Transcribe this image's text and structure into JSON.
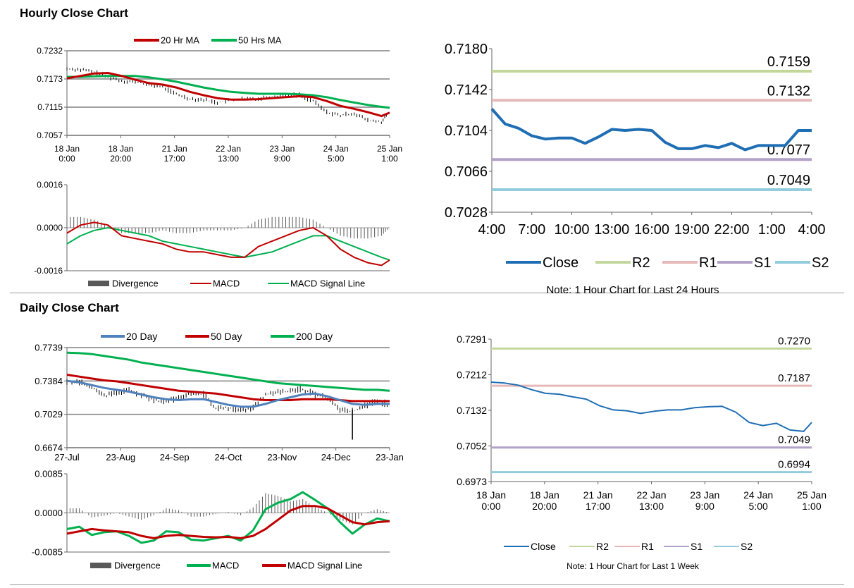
{
  "section_titles": {
    "hourly": "Hourly Close Chart",
    "daily": "Daily Close Chart"
  },
  "colors": {
    "ma20_hr": "#c00000",
    "ma50_hr": "#00b050",
    "close": "#1f6eb4",
    "r2": "#c3d69b",
    "r1": "#e6b9b8",
    "s1": "#b3a2c7",
    "s2": "#93cddd",
    "day20": "#4f81bd",
    "day50": "#c00000",
    "day200": "#00b050",
    "divergence": "#595959"
  },
  "chart_data": [
    {
      "id": "hourly_price",
      "type": "line",
      "legend": [
        "20 Hr MA",
        "50 Hrs MA"
      ],
      "ylim": [
        0.7057,
        0.7232
      ],
      "yticks": [
        "0.7232",
        "0.7173",
        "0.7115",
        "0.7057"
      ],
      "xticks": [
        "18 Jan\n0:00",
        "18 Jan\n20:00",
        "21 Jan\n17:00",
        "22 Jan\n13:00",
        "23 Jan\n9:00",
        "24 Jan\n5:00",
        "25 Jan\n1:00"
      ],
      "x": [
        0,
        5,
        10,
        15,
        20,
        25,
        30,
        35,
        40,
        45,
        50,
        55,
        60,
        65,
        70,
        75,
        80,
        85,
        90,
        95,
        100,
        105,
        110,
        115,
        118
      ],
      "close": [
        0.7195,
        0.7193,
        0.7188,
        0.7178,
        0.717,
        0.7168,
        0.7162,
        0.7157,
        0.7142,
        0.7133,
        0.7131,
        0.7125,
        0.713,
        0.7133,
        0.7133,
        0.7138,
        0.714,
        0.7141,
        0.7128,
        0.7105,
        0.7098,
        0.7103,
        0.7088,
        0.7085,
        0.7105
      ],
      "series": [
        {
          "name": "20 Hr MA",
          "values": [
            0.7175,
            0.718,
            0.7185,
            0.7186,
            0.718,
            0.7172,
            0.7165,
            0.7162,
            0.7156,
            0.7147,
            0.714,
            0.7134,
            0.7131,
            0.7131,
            0.7132,
            0.7134,
            0.7136,
            0.7138,
            0.7136,
            0.7128,
            0.7118,
            0.7112,
            0.7105,
            0.7097,
            0.7104
          ]
        },
        {
          "name": "50 Hrs MA",
          "values": [
            0.7178,
            0.7178,
            0.7179,
            0.718,
            0.718,
            0.718,
            0.7177,
            0.7173,
            0.7168,
            0.7162,
            0.7156,
            0.7151,
            0.7147,
            0.7145,
            0.7143,
            0.7143,
            0.7143,
            0.7142,
            0.714,
            0.7136,
            0.713,
            0.7125,
            0.712,
            0.7116,
            0.7114
          ]
        }
      ]
    },
    {
      "id": "hourly_macd",
      "type": "line",
      "legend": [
        "Divergence",
        "MACD",
        "MACD Signal Line"
      ],
      "ylim": [
        -0.0016,
        0.0016
      ],
      "yticks": [
        "0.0016",
        "0.0000",
        "-0.0016"
      ],
      "x": [
        0,
        5,
        10,
        15,
        20,
        25,
        30,
        35,
        40,
        45,
        50,
        55,
        60,
        65,
        70,
        75,
        80,
        85,
        90,
        95,
        100,
        105,
        110,
        115,
        118
      ],
      "series": [
        {
          "name": "MACD",
          "values": [
            -0.0002,
            0.0001,
            0.0002,
            0.0001,
            -0.0003,
            -0.0004,
            -0.0005,
            -0.0006,
            -0.0008,
            -0.0009,
            -0.0009,
            -0.001,
            -0.0011,
            -0.0011,
            -0.0007,
            -0.0005,
            -0.0003,
            -0.0001,
            0.0,
            -0.0003,
            -0.0008,
            -0.0011,
            -0.0013,
            -0.0014,
            -0.0012
          ]
        },
        {
          "name": "MACD Signal Line",
          "values": [
            -0.0006,
            -0.0003,
            -0.0001,
            0.0,
            -0.0001,
            -0.0002,
            -0.0003,
            -0.0005,
            -0.0006,
            -0.0007,
            -0.0008,
            -0.0009,
            -0.001,
            -0.0011,
            -0.001,
            -0.0009,
            -0.0007,
            -0.0005,
            -0.0003,
            -0.0003,
            -0.0005,
            -0.0007,
            -0.0009,
            -0.0011,
            -0.0012
          ]
        }
      ],
      "divergence": [
        0.0004,
        0.0004,
        0.0003,
        0.0001,
        -0.0002,
        -0.0002,
        -0.0002,
        -0.0001,
        -0.0002,
        -0.0002,
        -0.0001,
        -0.0001,
        -0.0001,
        0.0,
        0.0003,
        0.0004,
        0.0004,
        0.0004,
        0.0003,
        0.0,
        -0.0003,
        -0.0004,
        -0.0004,
        -0.0003,
        0.0
      ]
    },
    {
      "id": "hourly_24h",
      "type": "line",
      "ylim": [
        0.7028,
        0.718
      ],
      "yticks": [
        "0.7180",
        "0.7142",
        "0.7104",
        "0.7066",
        "0.7028"
      ],
      "xticks": [
        "4:00",
        "7:00",
        "10:00",
        "13:00",
        "16:00",
        "19:00",
        "22:00",
        "1:00",
        "4:00"
      ],
      "x": [
        0,
        1,
        2,
        3,
        4,
        5,
        6,
        7,
        8,
        9,
        10,
        11,
        12,
        13,
        14,
        15,
        16,
        17,
        18,
        19,
        20,
        21,
        22,
        23,
        24
      ],
      "close": [
        0.7124,
        0.711,
        0.7106,
        0.7099,
        0.7096,
        0.7097,
        0.7097,
        0.7092,
        0.7098,
        0.7105,
        0.7104,
        0.7105,
        0.7104,
        0.7093,
        0.7087,
        0.7087,
        0.709,
        0.7088,
        0.7092,
        0.7086,
        0.709,
        0.709,
        0.709,
        0.7104,
        0.7104
      ],
      "levels": [
        {
          "name": "R2",
          "value": 0.7159,
          "label": "0.7159"
        },
        {
          "name": "R1",
          "value": 0.7132,
          "label": "0.7132"
        },
        {
          "name": "S1",
          "value": 0.7077,
          "label": "0.7077"
        },
        {
          "name": "S2",
          "value": 0.7049,
          "label": "0.7049"
        }
      ],
      "legend": [
        "Close",
        "R2",
        "R1",
        "S1",
        "S2"
      ],
      "note": "Note: 1 Hour Chart for Last 24 Hours"
    },
    {
      "id": "daily_price",
      "type": "line",
      "legend": [
        "20 Day",
        "50 Day",
        "200 Day"
      ],
      "ylim": [
        0.6674,
        0.7739
      ],
      "yticks": [
        "0.7739",
        "0.7384",
        "0.7029",
        "0.6674"
      ],
      "xticks": [
        "27-Jul",
        "23-Aug",
        "24-Sep",
        "24-Oct",
        "23-Nov",
        "24-Dec",
        "23-Jan"
      ],
      "x": [
        0,
        5,
        10,
        15,
        20,
        25,
        30,
        35,
        40,
        45,
        50,
        55,
        60,
        65,
        70,
        75,
        80,
        85,
        90,
        95,
        100,
        105,
        110,
        115,
        120,
        125,
        130
      ],
      "close": [
        0.738,
        0.737,
        0.733,
        0.722,
        0.726,
        0.729,
        0.723,
        0.718,
        0.716,
        0.72,
        0.725,
        0.724,
        0.71,
        0.71,
        0.707,
        0.71,
        0.724,
        0.726,
        0.727,
        0.73,
        0.724,
        0.72,
        0.708,
        0.706,
        0.712,
        0.717,
        0.713
      ],
      "series": [
        {
          "name": "20 Day",
          "values": [
            0.7385,
            0.737,
            0.734,
            0.731,
            0.729,
            0.727,
            0.724,
            0.721,
            0.719,
            0.718,
            0.719,
            0.719,
            0.716,
            0.713,
            0.711,
            0.711,
            0.714,
            0.718,
            0.721,
            0.724,
            0.725,
            0.722,
            0.718,
            0.714,
            0.713,
            0.714,
            0.714
          ]
        },
        {
          "name": "50 Day",
          "values": [
            0.745,
            0.743,
            0.741,
            0.739,
            0.738,
            0.736,
            0.734,
            0.732,
            0.73,
            0.728,
            0.727,
            0.726,
            0.725,
            0.723,
            0.721,
            0.719,
            0.718,
            0.718,
            0.718,
            0.719,
            0.719,
            0.719,
            0.718,
            0.717,
            0.717,
            0.717,
            0.717
          ]
        },
        {
          "name": "200 Day",
          "values": [
            0.7685,
            0.768,
            0.767,
            0.765,
            0.763,
            0.761,
            0.758,
            0.756,
            0.754,
            0.752,
            0.75,
            0.748,
            0.746,
            0.744,
            0.742,
            0.74,
            0.738,
            0.736,
            0.735,
            0.734,
            0.733,
            0.732,
            0.731,
            0.73,
            0.729,
            0.729,
            0.728
          ]
        }
      ]
    },
    {
      "id": "daily_macd",
      "type": "line",
      "legend": [
        "Divergence",
        "MACD",
        "MACD Signal Line"
      ],
      "ylim": [
        -0.0085,
        0.0085
      ],
      "yticks": [
        "0.0085",
        "0.0000",
        "-0.0085"
      ],
      "x": [
        0,
        5,
        10,
        15,
        20,
        25,
        30,
        35,
        40,
        45,
        50,
        55,
        60,
        65,
        70,
        75,
        80,
        85,
        90,
        95,
        100,
        105,
        110,
        115,
        120,
        125,
        130
      ],
      "series": [
        {
          "name": "MACD",
          "values": [
            -0.0035,
            -0.003,
            -0.0048,
            -0.0042,
            -0.004,
            -0.005,
            -0.0065,
            -0.006,
            -0.004,
            -0.0042,
            -0.0058,
            -0.006,
            -0.0055,
            -0.005,
            -0.006,
            -0.0038,
            0.0008,
            0.0022,
            0.003,
            0.0045,
            0.0028,
            0.001,
            -0.002,
            -0.0045,
            -0.0025,
            -0.0012,
            -0.0018
          ]
        },
        {
          "name": "MACD Signal Line",
          "values": [
            -0.0045,
            -0.004,
            -0.0035,
            -0.0038,
            -0.004,
            -0.0042,
            -0.005,
            -0.0055,
            -0.005,
            -0.0048,
            -0.005,
            -0.0052,
            -0.0053,
            -0.0052,
            -0.0055,
            -0.005,
            -0.0035,
            -0.0015,
            0.0005,
            0.0015,
            0.0015,
            0.001,
            -0.0005,
            -0.002,
            -0.0025,
            -0.002,
            -0.0018
          ]
        }
      ],
      "divergence": [
        0.001,
        0.001,
        -0.001,
        -0.0006,
        0.0,
        -0.0008,
        -0.0015,
        -0.0005,
        0.001,
        0.0006,
        -0.0008,
        -0.0008,
        -0.0002,
        0.0002,
        -0.0005,
        0.0012,
        0.0043,
        0.0037,
        0.0025,
        0.003,
        0.0013,
        0.0,
        -0.0015,
        -0.0025,
        0.0,
        0.0008,
        0.0
      ]
    },
    {
      "id": "weekly_hourly",
      "type": "line",
      "ylim": [
        0.6973,
        0.7291
      ],
      "yticks": [
        "0.7291",
        "0.7212",
        "0.7132",
        "0.7052",
        "0.6973"
      ],
      "xticks": [
        "18 Jan\n0:00",
        "18 Jan\n20:00",
        "21 Jan\n17:00",
        "22 Jan\n13:00",
        "23 Jan\n9:00",
        "24 Jan\n5:00",
        "25 Jan\n1:00"
      ],
      "x": [
        0,
        5,
        10,
        15,
        20,
        25,
        30,
        35,
        40,
        45,
        50,
        55,
        60,
        65,
        70,
        75,
        80,
        85,
        90,
        95,
        100,
        105,
        110,
        115,
        118
      ],
      "close": [
        0.7195,
        0.7193,
        0.7188,
        0.7178,
        0.717,
        0.7168,
        0.7162,
        0.7157,
        0.7142,
        0.7133,
        0.7131,
        0.7125,
        0.713,
        0.7133,
        0.7133,
        0.7138,
        0.714,
        0.7141,
        0.7128,
        0.7105,
        0.7098,
        0.7103,
        0.7088,
        0.7085,
        0.7105
      ],
      "levels": [
        {
          "name": "R2",
          "value": 0.727,
          "label": "0.7270"
        },
        {
          "name": "R1",
          "value": 0.7187,
          "label": "0.7187"
        },
        {
          "name": "S1",
          "value": 0.7049,
          "label": "0.7049"
        },
        {
          "name": "S2",
          "value": 0.6994,
          "label": "0.6994"
        }
      ],
      "legend": [
        "Close",
        "R2",
        "R1",
        "S1",
        "S2"
      ],
      "note": "Note: 1 Hour Chart for Last 1 Week"
    }
  ]
}
